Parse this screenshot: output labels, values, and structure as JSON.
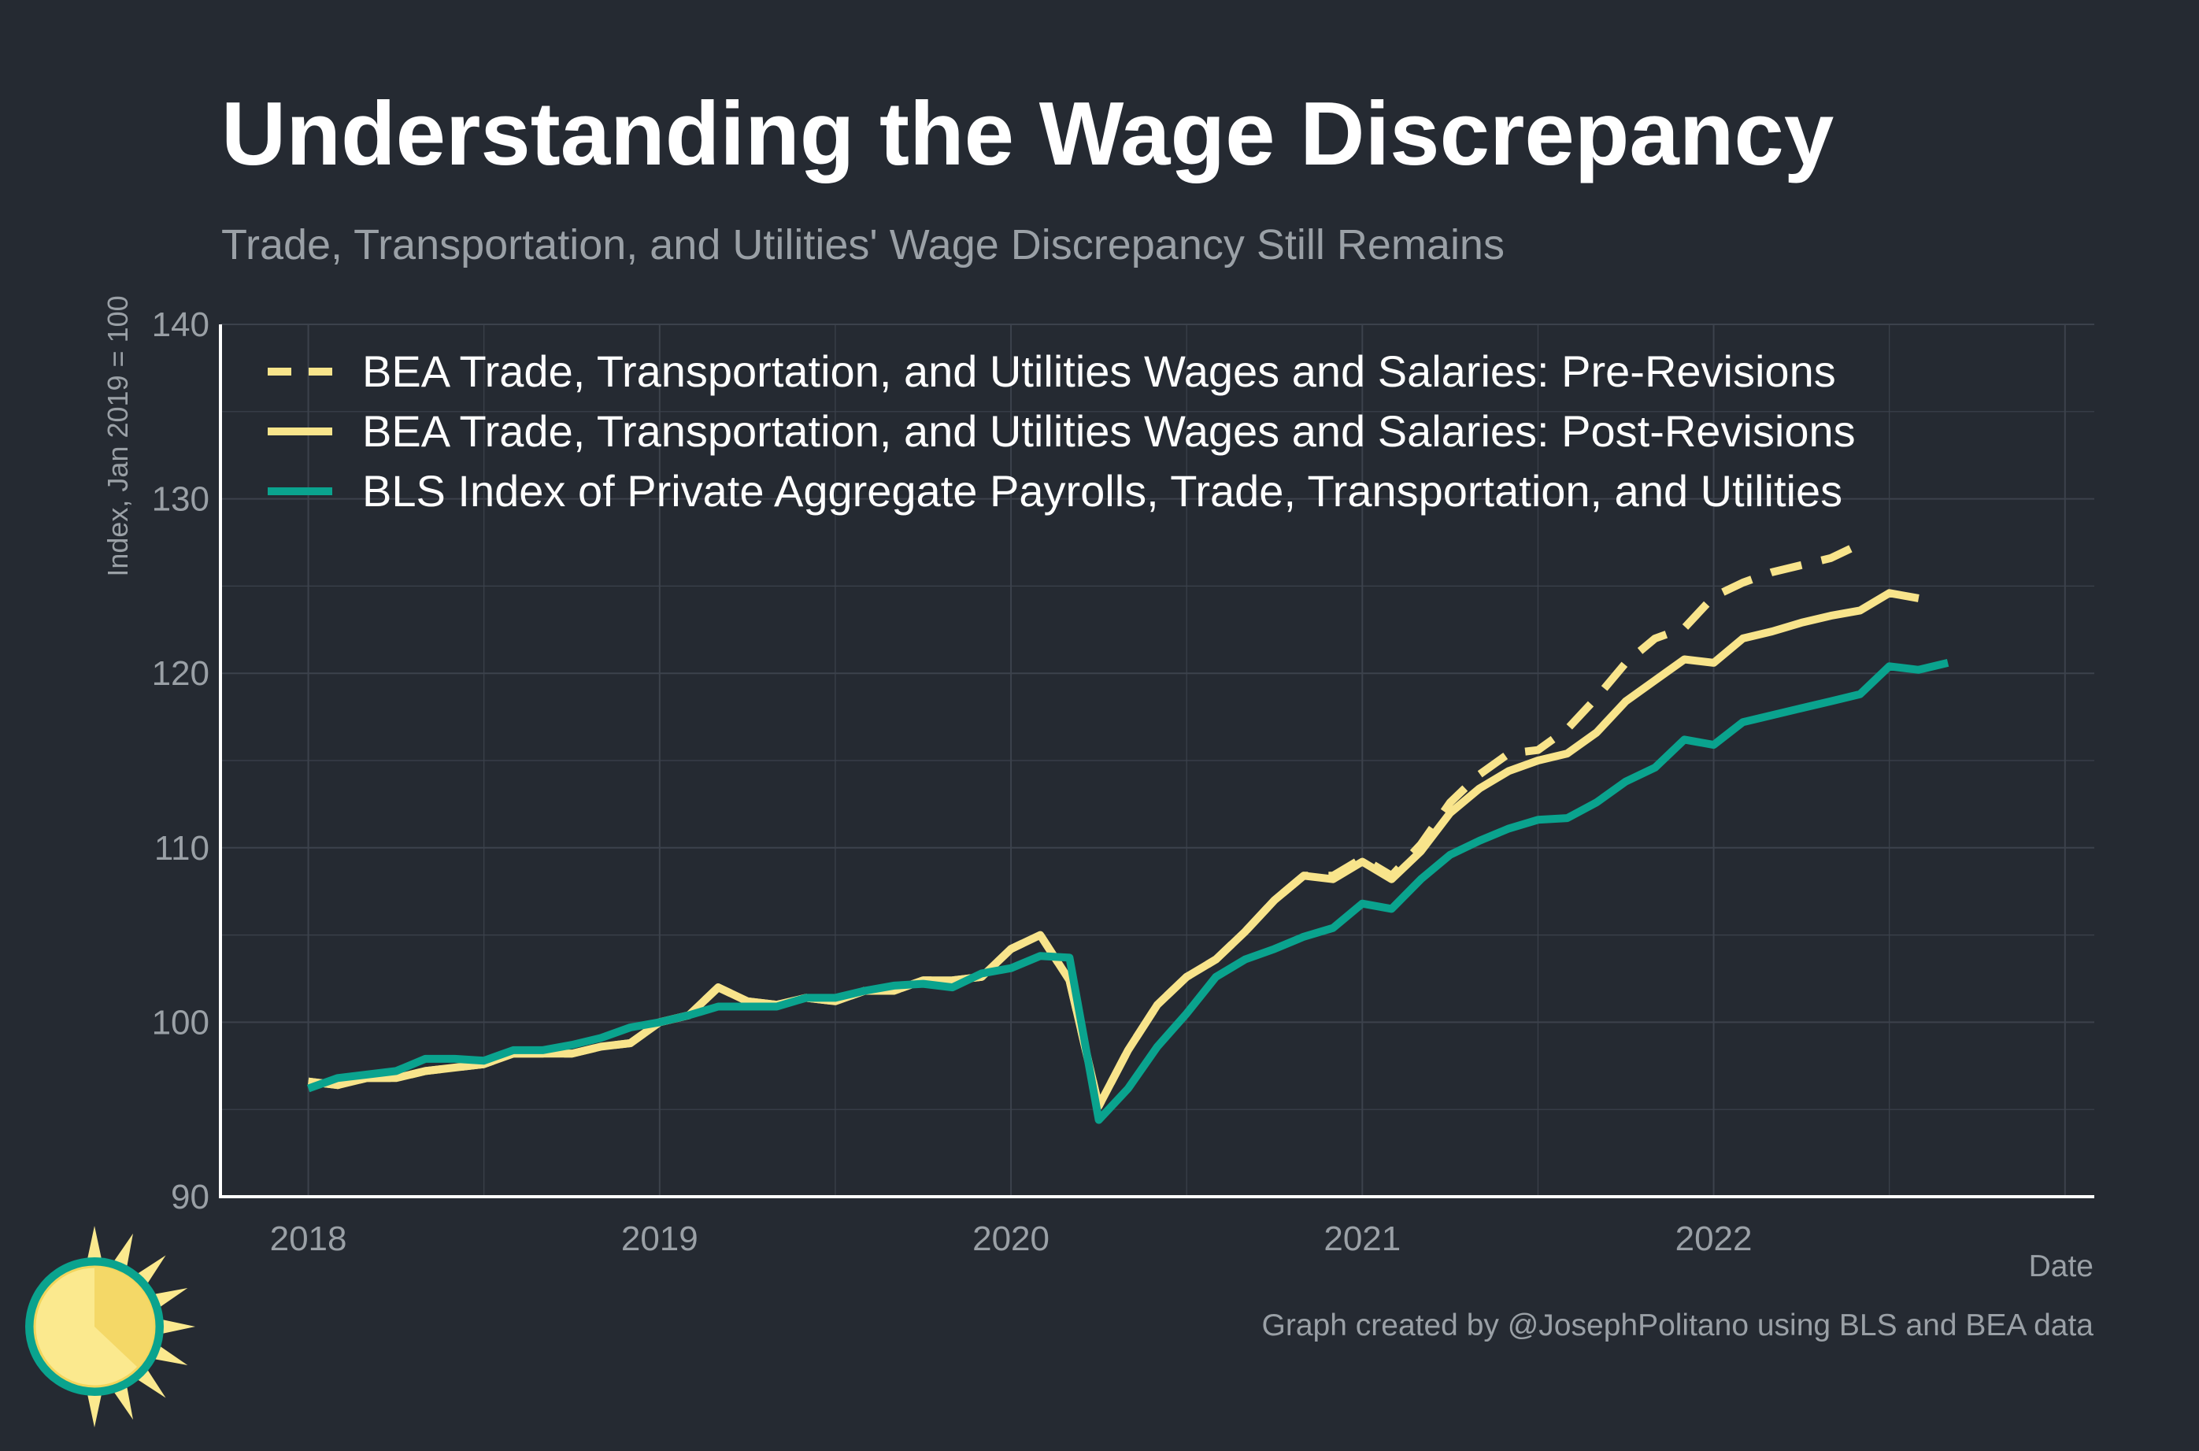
{
  "title": "Understanding the Wage Discrepancy",
  "subtitle": "Trade, Transportation, and Utilities' Wage Discrepancy Still Remains",
  "credit": "Graph created by @JosephPolitano using BLS and BEA data",
  "colors": {
    "background": "#252a32",
    "grid": "#3c424c",
    "axis": "#ffffff",
    "bea": "#f8e48b",
    "bls": "#0aa38e",
    "tick_text": "#9aa0a6",
    "legend_text": "#ffffff"
  },
  "logo_icon": "sun-logo-icon",
  "chart_data": {
    "type": "line",
    "xlabel": "Date",
    "ylabel": "Index, Jan 2019 = 100",
    "ylim": [
      90,
      140
    ],
    "y_ticks": [
      90,
      100,
      110,
      120,
      130,
      140
    ],
    "x_ticks": [
      "2018",
      "2019",
      "2020",
      "2021",
      "2022"
    ],
    "x_range": [
      "2017-10",
      "2023-02"
    ],
    "grid": true,
    "legend_position": "top-left",
    "series": [
      {
        "name": "BEA Trade, Transportation, and Utilities Wages and Salaries: Pre-Revisions",
        "style": "dashed",
        "color": "#f8e48b",
        "start": "2018-01",
        "values": [
          96.6,
          96.4,
          96.8,
          96.8,
          97.2,
          97.4,
          97.6,
          98.2,
          98.2,
          98.2,
          98.6,
          98.8,
          100.0,
          100.4,
          102.0,
          101.2,
          101.0,
          101.4,
          101.2,
          101.8,
          101.8,
          102.4,
          102.4,
          102.6,
          104.2,
          105.0,
          102.4,
          95.2,
          98.4,
          101.0,
          102.6,
          103.6,
          105.2,
          107.0,
          108.4,
          108.4,
          109.4,
          108.4,
          110.2,
          112.6,
          114.2,
          115.4,
          115.6,
          116.8,
          118.6,
          120.6,
          122.0,
          122.6,
          124.4,
          125.2,
          125.8,
          126.2,
          126.6,
          127.4
        ]
      },
      {
        "name": "BEA Trade, Transportation, and Utilities Wages and Salaries: Post-Revisions",
        "style": "solid",
        "color": "#f8e48b",
        "start": "2018-01",
        "values": [
          96.6,
          96.4,
          96.8,
          96.8,
          97.2,
          97.4,
          97.6,
          98.2,
          98.2,
          98.2,
          98.6,
          98.8,
          100.0,
          100.4,
          102.0,
          101.2,
          101.0,
          101.4,
          101.2,
          101.8,
          101.8,
          102.4,
          102.4,
          102.6,
          104.2,
          105.0,
          102.4,
          95.2,
          98.4,
          101.0,
          102.6,
          103.6,
          105.2,
          107.0,
          108.4,
          108.2,
          109.2,
          108.2,
          109.8,
          112.0,
          113.4,
          114.4,
          115.0,
          115.4,
          116.6,
          118.4,
          119.6,
          120.8,
          120.6,
          122.0,
          122.4,
          122.9,
          123.3,
          123.6,
          124.6,
          124.3
        ]
      },
      {
        "name": "BLS Index of Private Aggregate Payrolls, Trade, Transportation, and Utilities",
        "style": "solid",
        "color": "#0aa38e",
        "start": "2018-01",
        "values": [
          96.2,
          96.8,
          97.0,
          97.2,
          97.9,
          97.9,
          97.8,
          98.4,
          98.4,
          98.7,
          99.1,
          99.7,
          100.0,
          100.4,
          100.9,
          100.9,
          100.9,
          101.4,
          101.4,
          101.8,
          102.1,
          102.2,
          102.0,
          102.8,
          103.1,
          103.8,
          103.7,
          94.4,
          96.2,
          98.6,
          100.5,
          102.6,
          103.6,
          104.2,
          104.9,
          105.4,
          106.8,
          106.5,
          108.2,
          109.6,
          110.4,
          111.1,
          111.6,
          111.7,
          112.6,
          113.8,
          114.6,
          116.2,
          115.9,
          117.2,
          117.6,
          118.0,
          118.4,
          118.8,
          120.4,
          120.2,
          120.6
        ]
      }
    ]
  }
}
